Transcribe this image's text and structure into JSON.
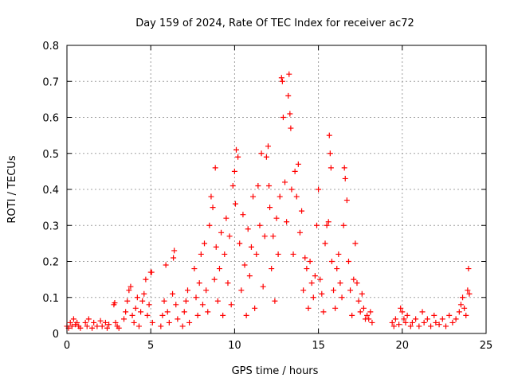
{
  "chart_data": {
    "type": "scatter",
    "title": "Day 159 of 2024, Rate Of TEC Index for receiver ac72",
    "xlabel": "GPS time / hours",
    "ylabel": "ROTI / TECUs",
    "xlim": [
      0,
      25
    ],
    "ylim": [
      0,
      0.8
    ],
    "x_ticks": [
      "0",
      "5",
      "10",
      "15",
      "20",
      "25"
    ],
    "y_ticks": [
      "0",
      "0.1",
      "0.2",
      "0.3",
      "0.4",
      "0.5",
      "0.6",
      "0.7",
      "0.8"
    ],
    "grid": true,
    "marker": "plus",
    "colors": {
      "series": "#ff0000",
      "grid": "#a0a0a0",
      "axis": "#000000"
    },
    "series": [
      {
        "points": [
          [
            0.0,
            0.02
          ],
          [
            0.1,
            0.015
          ],
          [
            0.2,
            0.03
          ],
          [
            0.3,
            0.02
          ],
          [
            0.4,
            0.04
          ],
          [
            0.5,
            0.025
          ],
          [
            0.6,
            0.03
          ],
          [
            0.7,
            0.02
          ],
          [
            0.8,
            0.015
          ],
          [
            1.1,
            0.03
          ],
          [
            1.2,
            0.02
          ],
          [
            1.3,
            0.04
          ],
          [
            1.5,
            0.015
          ],
          [
            1.6,
            0.03
          ],
          [
            1.8,
            0.02
          ],
          [
            2.0,
            0.035
          ],
          [
            2.1,
            0.02
          ],
          [
            2.3,
            0.03
          ],
          [
            2.4,
            0.015
          ],
          [
            2.5,
            0.025
          ],
          [
            2.8,
            0.08
          ],
          [
            2.85,
            0.085
          ],
          [
            2.9,
            0.03
          ],
          [
            3.0,
            0.02
          ],
          [
            3.1,
            0.015
          ],
          [
            3.4,
            0.04
          ],
          [
            3.5,
            0.06
          ],
          [
            3.6,
            0.09
          ],
          [
            3.7,
            0.12
          ],
          [
            3.8,
            0.13
          ],
          [
            3.9,
            0.05
          ],
          [
            4.0,
            0.03
          ],
          [
            4.1,
            0.07
          ],
          [
            4.2,
            0.1
          ],
          [
            4.3,
            0.02
          ],
          [
            4.4,
            0.06
          ],
          [
            4.5,
            0.09
          ],
          [
            4.6,
            0.11
          ],
          [
            4.7,
            0.15
          ],
          [
            4.8,
            0.05
          ],
          [
            4.9,
            0.08
          ],
          [
            5.0,
            0.17
          ],
          [
            5.05,
            0.17
          ],
          [
            5.1,
            0.03
          ],
          [
            5.6,
            0.02
          ],
          [
            5.7,
            0.05
          ],
          [
            5.8,
            0.09
          ],
          [
            5.9,
            0.19
          ],
          [
            6.0,
            0.06
          ],
          [
            6.1,
            0.03
          ],
          [
            6.3,
            0.11
          ],
          [
            6.35,
            0.21
          ],
          [
            6.4,
            0.23
          ],
          [
            6.5,
            0.08
          ],
          [
            6.6,
            0.04
          ],
          [
            6.9,
            0.02
          ],
          [
            7.0,
            0.06
          ],
          [
            7.1,
            0.09
          ],
          [
            7.2,
            0.12
          ],
          [
            7.3,
            0.03
          ],
          [
            7.6,
            0.18
          ],
          [
            7.7,
            0.1
          ],
          [
            7.8,
            0.05
          ],
          [
            7.9,
            0.14
          ],
          [
            8.0,
            0.22
          ],
          [
            8.1,
            0.08
          ],
          [
            8.2,
            0.25
          ],
          [
            8.3,
            0.12
          ],
          [
            8.4,
            0.06
          ],
          [
            8.5,
            0.3
          ],
          [
            8.6,
            0.38
          ],
          [
            8.7,
            0.35
          ],
          [
            8.8,
            0.15
          ],
          [
            8.85,
            0.46
          ],
          [
            8.9,
            0.24
          ],
          [
            9.0,
            0.09
          ],
          [
            9.1,
            0.18
          ],
          [
            9.2,
            0.28
          ],
          [
            9.3,
            0.05
          ],
          [
            9.4,
            0.22
          ],
          [
            9.5,
            0.32
          ],
          [
            9.6,
            0.14
          ],
          [
            9.7,
            0.27
          ],
          [
            9.8,
            0.08
          ],
          [
            9.9,
            0.41
          ],
          [
            10.0,
            0.45
          ],
          [
            10.05,
            0.36
          ],
          [
            10.1,
            0.51
          ],
          [
            10.2,
            0.49
          ],
          [
            10.3,
            0.25
          ],
          [
            10.4,
            0.12
          ],
          [
            10.5,
            0.33
          ],
          [
            10.6,
            0.19
          ],
          [
            10.7,
            0.05
          ],
          [
            10.8,
            0.29
          ],
          [
            10.9,
            0.16
          ],
          [
            11.0,
            0.24
          ],
          [
            11.1,
            0.38
          ],
          [
            11.2,
            0.07
          ],
          [
            11.3,
            0.22
          ],
          [
            11.4,
            0.41
          ],
          [
            11.5,
            0.3
          ],
          [
            11.6,
            0.5
          ],
          [
            11.7,
            0.13
          ],
          [
            11.8,
            0.27
          ],
          [
            11.9,
            0.49
          ],
          [
            12.0,
            0.52
          ],
          [
            12.05,
            0.41
          ],
          [
            12.1,
            0.35
          ],
          [
            12.2,
            0.18
          ],
          [
            12.3,
            0.27
          ],
          [
            12.4,
            0.09
          ],
          [
            12.5,
            0.32
          ],
          [
            12.6,
            0.22
          ],
          [
            12.7,
            0.38
          ],
          [
            12.8,
            0.71
          ],
          [
            12.85,
            0.7
          ],
          [
            12.9,
            0.6
          ],
          [
            13.0,
            0.42
          ],
          [
            13.1,
            0.31
          ],
          [
            13.2,
            0.66
          ],
          [
            13.25,
            0.72
          ],
          [
            13.3,
            0.61
          ],
          [
            13.35,
            0.57
          ],
          [
            13.4,
            0.4
          ],
          [
            13.5,
            0.22
          ],
          [
            13.6,
            0.45
          ],
          [
            13.7,
            0.38
          ],
          [
            13.8,
            0.47
          ],
          [
            13.9,
            0.28
          ],
          [
            14.0,
            0.34
          ],
          [
            14.1,
            0.12
          ],
          [
            14.2,
            0.21
          ],
          [
            14.3,
            0.18
          ],
          [
            14.4,
            0.07
          ],
          [
            14.5,
            0.2
          ],
          [
            14.6,
            0.14
          ],
          [
            14.7,
            0.1
          ],
          [
            14.8,
            0.16
          ],
          [
            14.9,
            0.3
          ],
          [
            15.0,
            0.4
          ],
          [
            15.1,
            0.15
          ],
          [
            15.2,
            0.11
          ],
          [
            15.3,
            0.06
          ],
          [
            15.4,
            0.25
          ],
          [
            15.5,
            0.3
          ],
          [
            15.6,
            0.31
          ],
          [
            15.65,
            0.55
          ],
          [
            15.7,
            0.5
          ],
          [
            15.75,
            0.46
          ],
          [
            15.8,
            0.2
          ],
          [
            15.9,
            0.12
          ],
          [
            16.0,
            0.07
          ],
          [
            16.1,
            0.18
          ],
          [
            16.2,
            0.22
          ],
          [
            16.3,
            0.14
          ],
          [
            16.4,
            0.1
          ],
          [
            16.5,
            0.3
          ],
          [
            16.55,
            0.46
          ],
          [
            16.6,
            0.43
          ],
          [
            16.7,
            0.37
          ],
          [
            16.8,
            0.2
          ],
          [
            16.9,
            0.12
          ],
          [
            17.0,
            0.05
          ],
          [
            17.1,
            0.15
          ],
          [
            17.2,
            0.25
          ],
          [
            17.3,
            0.14
          ],
          [
            17.4,
            0.09
          ],
          [
            17.5,
            0.06
          ],
          [
            17.6,
            0.11
          ],
          [
            17.7,
            0.07
          ],
          [
            17.8,
            0.04
          ],
          [
            17.9,
            0.05
          ],
          [
            18.0,
            0.04
          ],
          [
            18.1,
            0.06
          ],
          [
            18.2,
            0.03
          ],
          [
            19.4,
            0.03
          ],
          [
            19.5,
            0.02
          ],
          [
            19.6,
            0.04
          ],
          [
            19.8,
            0.025
          ],
          [
            19.9,
            0.07
          ],
          [
            20.0,
            0.06
          ],
          [
            20.1,
            0.04
          ],
          [
            20.2,
            0.03
          ],
          [
            20.3,
            0.05
          ],
          [
            20.5,
            0.02
          ],
          [
            20.6,
            0.03
          ],
          [
            20.8,
            0.04
          ],
          [
            21.0,
            0.02
          ],
          [
            21.2,
            0.06
          ],
          [
            21.3,
            0.03
          ],
          [
            21.5,
            0.04
          ],
          [
            21.7,
            0.02
          ],
          [
            21.9,
            0.05
          ],
          [
            22.0,
            0.03
          ],
          [
            22.2,
            0.025
          ],
          [
            22.4,
            0.04
          ],
          [
            22.6,
            0.02
          ],
          [
            22.8,
            0.05
          ],
          [
            23.0,
            0.03
          ],
          [
            23.2,
            0.04
          ],
          [
            23.4,
            0.06
          ],
          [
            23.5,
            0.08
          ],
          [
            23.6,
            0.1
          ],
          [
            23.7,
            0.07
          ],
          [
            23.8,
            0.05
          ],
          [
            23.9,
            0.12
          ],
          [
            23.95,
            0.18
          ],
          [
            24.0,
            0.11
          ]
        ]
      }
    ]
  }
}
